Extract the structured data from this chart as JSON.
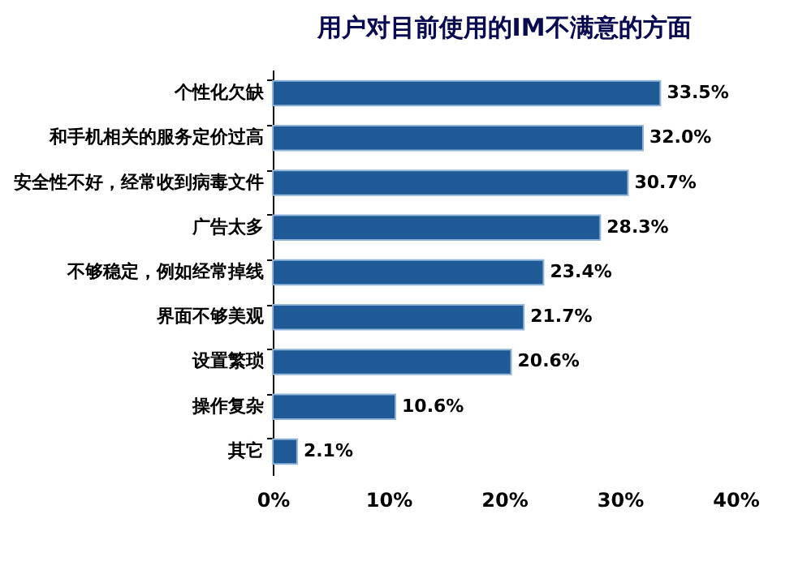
{
  "chart_data": {
    "type": "bar",
    "orientation": "horizontal",
    "title": "用户对目前使用的IM不满意的方面",
    "categories": [
      "个性化欠缺",
      "和手机相关的服务定价过高",
      "安全性不好，经常收到病毒文件",
      "广告太多",
      "不够稳定，例如经常掉线",
      "界面不够美观",
      "设置繁琐",
      "操作复杂",
      "其它"
    ],
    "values": [
      33.5,
      32.0,
      30.7,
      28.3,
      23.4,
      21.7,
      20.6,
      10.6,
      2.1
    ],
    "value_labels": [
      "33.5%",
      "32.0%",
      "30.7%",
      "28.3%",
      "23.4%",
      "21.7%",
      "20.6%",
      "10.6%",
      "2.1%"
    ],
    "color": "#1f5a96",
    "xlim": [
      0,
      40
    ],
    "xticks": [
      {
        "value": 0,
        "label": "0%"
      },
      {
        "value": 10,
        "label": "10%"
      },
      {
        "value": 20,
        "label": "20%"
      },
      {
        "value": 30,
        "label": "30%"
      },
      {
        "value": 40,
        "label": "40%"
      }
    ],
    "grid": false
  }
}
